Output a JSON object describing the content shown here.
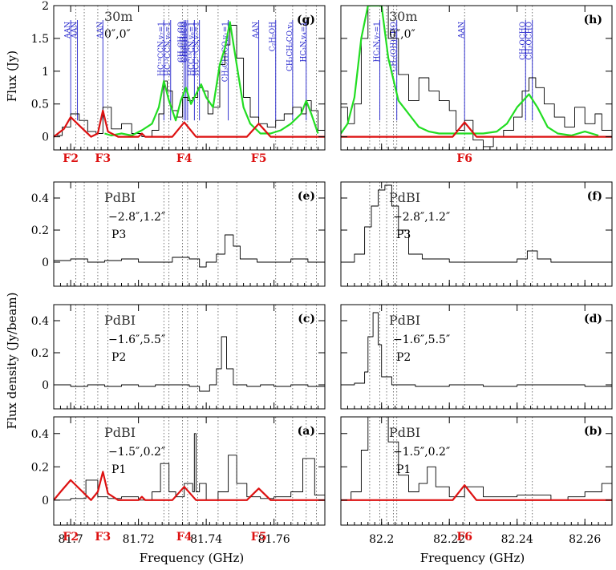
{
  "figure": {
    "x_label": "Frequency (GHz)",
    "y_label_top": "Flux (Jy)",
    "y_label_bottom": "Flux density (Jy/beam)",
    "colors": {
      "observed": "#000000",
      "model_green": "#22dd22",
      "model_red": "#dd1111",
      "line_marker": "#2222cc",
      "guide": "#555555"
    }
  },
  "chart_data": [
    {
      "type": "line",
      "panel": "(g)",
      "instrument": "30m",
      "offset": "0″,0″",
      "xlim": [
        81.695,
        81.775
      ],
      "ylim": [
        -0.2,
        2.0
      ],
      "yticks": [
        0,
        0.5,
        1,
        1.5,
        2
      ],
      "ytick_labels": [
        "0",
        "0.5",
        "1",
        "1.5",
        "2"
      ],
      "xticks": [
        81.7,
        81.72,
        81.74,
        81.76
      ],
      "xtick_labels": [],
      "ylabel": "Flux (Jy)",
      "features": [
        {
          "label": "F2",
          "x": 81.7
        },
        {
          "label": "F3",
          "x": 81.7095
        },
        {
          "label": "F4",
          "x": 81.7335
        },
        {
          "label": "F5",
          "x": 81.7555
        }
      ],
      "species": [
        {
          "name": "AAN",
          "x": 81.7
        },
        {
          "name": "AAN",
          "x": 81.702
        },
        {
          "name": "AAN",
          "x": 81.7095
        },
        {
          "name": "HC¹³CCN,v₇=1",
          "x": 81.7275
        },
        {
          "name": "HC¹³CCN,v₆=1",
          "x": 81.7295
        },
        {
          "name": "CH₃CH₃CO",
          "x": 81.7335
        },
        {
          "name": "CH₃CH₃CO",
          "x": 81.734
        },
        {
          "name": "CH₃CH₃CO",
          "x": 81.7345
        },
        {
          "name": "HCC¹³CN,v₆=1",
          "x": 81.7365
        },
        {
          "name": "HCC¹³CN,v₇=1",
          "x": 81.738
        },
        {
          "name": "CH₃CH₃CO,v₁=1",
          "x": 81.7465
        },
        {
          "name": "AAN",
          "x": 81.7555
        },
        {
          "name": "C₂H₅OH",
          "x": 81.7605
        },
        {
          "name": "CH₃CH₃CO,v₁",
          "x": 81.7655
        },
        {
          "name": "HC₃N,v₄=1",
          "x": 81.7695
        }
      ],
      "series": [
        {
          "role": "observed",
          "x": [
            81.695,
            81.6975,
            81.7,
            81.7025,
            81.705,
            81.7075,
            81.7095,
            81.712,
            81.715,
            81.718,
            81.721,
            81.724,
            81.726,
            81.7275,
            81.7285,
            81.73,
            81.7315,
            81.733,
            81.7345,
            81.736,
            81.7375,
            81.739,
            81.7405,
            81.742,
            81.744,
            81.7455,
            81.747,
            81.749,
            81.751,
            81.753,
            81.7555,
            81.758,
            81.7605,
            81.763,
            81.7655,
            81.768,
            81.7695,
            81.771,
            81.773,
            81.775
          ],
          "y": [
            0.02,
            0.15,
            0.35,
            0.25,
            0.08,
            0.05,
            0.45,
            0.12,
            0.2,
            0.05,
            0.0,
            0.1,
            0.35,
            0.85,
            0.7,
            0.4,
            0.3,
            0.6,
            0.55,
            0.6,
            0.75,
            0.7,
            0.35,
            0.45,
            1.1,
            1.4,
            1.7,
            1.2,
            0.6,
            0.3,
            0.2,
            0.15,
            0.25,
            0.35,
            0.45,
            0.35,
            0.55,
            0.4,
            0.1,
            0.0
          ]
        },
        {
          "role": "model-green",
          "x": [
            81.71,
            81.712,
            81.715,
            81.718,
            81.721,
            81.724,
            81.726,
            81.7275,
            81.729,
            81.731,
            81.7325,
            81.734,
            81.7355,
            81.737,
            81.7385,
            81.74,
            81.742,
            81.744,
            81.7455,
            81.747,
            81.749,
            81.751,
            81.753,
            81.756,
            81.759,
            81.762,
            81.765,
            81.768,
            81.7695,
            81.771,
            81.773
          ],
          "y": [
            0.05,
            0.02,
            0.05,
            0.02,
            0.1,
            0.2,
            0.45,
            0.85,
            0.55,
            0.25,
            0.55,
            0.75,
            0.5,
            0.65,
            0.8,
            0.6,
            0.45,
            1.1,
            1.35,
            1.75,
            1.1,
            0.45,
            0.2,
            0.05,
            0.05,
            0.1,
            0.2,
            0.35,
            0.55,
            0.35,
            0.05
          ]
        },
        {
          "role": "model-red",
          "x": [
            81.695,
            81.698,
            81.7,
            81.703,
            81.706,
            81.708,
            81.7095,
            81.711,
            81.714,
            81.72,
            81.721,
            81.722,
            81.73,
            81.7335,
            81.737,
            81.752,
            81.7555,
            81.759,
            81.775
          ],
          "y": [
            0.0,
            0.12,
            0.3,
            0.15,
            0.0,
            0.05,
            0.4,
            0.08,
            0.0,
            0.0,
            0.05,
            0.0,
            0.0,
            0.22,
            0.0,
            0.0,
            0.2,
            0.0,
            0.0
          ]
        }
      ]
    },
    {
      "type": "line",
      "panel": "(h)",
      "instrument": "30m",
      "offset": "0″,0″",
      "xlim": [
        82.188,
        82.268
      ],
      "ylim": [
        -0.2,
        2.0
      ],
      "xticks": [
        82.2,
        82.22,
        82.24,
        82.26
      ],
      "xtick_labels": [],
      "features": [
        {
          "label": "F6",
          "x": 82.2245
        }
      ],
      "species": [
        {
          "name": "HC₃N,v₇=1",
          "x": 82.1995
        },
        {
          "name": "CH₂(OH)CHO",
          "x": 82.2045
        },
        {
          "name": "AAN",
          "x": 82.2245
        },
        {
          "name": "CH₃OCHO",
          "x": 82.2425
        },
        {
          "name": "CH₃OCHO",
          "x": 82.2445
        }
      ],
      "series": [
        {
          "role": "observed",
          "x": [
            82.188,
            82.19,
            82.192,
            82.194,
            82.196,
            82.198,
            82.2,
            82.202,
            82.205,
            82.208,
            82.211,
            82.214,
            82.217,
            82.22,
            82.222,
            82.2245,
            82.227,
            82.23,
            82.233,
            82.236,
            82.239,
            82.2415,
            82.2435,
            82.2455,
            82.248,
            82.251,
            82.254,
            82.257,
            82.26,
            82.263,
            82.265,
            82.268
          ],
          "y": [
            0.45,
            0.2,
            0.5,
            1.5,
            2.0,
            2.0,
            2.0,
            1.5,
            0.95,
            0.55,
            0.9,
            0.7,
            0.55,
            0.4,
            0.1,
            0.25,
            -0.05,
            -0.15,
            0.0,
            0.1,
            0.3,
            0.7,
            0.9,
            0.75,
            0.5,
            0.3,
            0.15,
            0.45,
            0.2,
            0.35,
            0.1,
            0.05
          ]
        },
        {
          "role": "model-green",
          "x": [
            82.188,
            82.19,
            82.192,
            82.194,
            82.196,
            82.198,
            82.2,
            82.202,
            82.205,
            82.208,
            82.211,
            82.214,
            82.217,
            82.22,
            82.223,
            82.226,
            82.23,
            82.234,
            82.237,
            82.24,
            82.2435,
            82.246,
            82.249,
            82.252,
            82.256,
            82.26,
            82.264
          ],
          "y": [
            0.05,
            0.2,
            0.6,
            1.5,
            2.0,
            2.0,
            2.0,
            1.2,
            0.55,
            0.35,
            0.15,
            0.08,
            0.05,
            0.05,
            0.05,
            0.05,
            0.05,
            0.08,
            0.2,
            0.45,
            0.65,
            0.45,
            0.15,
            0.05,
            0.02,
            0.08,
            0.02
          ]
        },
        {
          "role": "model-red",
          "x": [
            82.188,
            82.221,
            82.2245,
            82.228,
            82.268
          ],
          "y": [
            0.0,
            0.0,
            0.22,
            0.0,
            0.0
          ]
        }
      ]
    },
    {
      "type": "line",
      "panel": "(e)",
      "instrument": "PdBI",
      "offset": "−2.8″,1.2″",
      "position": "P3",
      "xlim": [
        81.695,
        81.775
      ],
      "ylim": [
        -0.15,
        0.5
      ],
      "yticks": [
        0,
        0.2,
        0.4
      ],
      "ytick_labels": [
        "0",
        "0.2",
        "0.4"
      ],
      "xticks": [
        81.7,
        81.72,
        81.74,
        81.76
      ],
      "xtick_labels": [],
      "series": [
        {
          "role": "observed",
          "x": [
            81.695,
            81.7,
            81.705,
            81.71,
            81.715,
            81.72,
            81.725,
            81.73,
            81.735,
            81.738,
            81.74,
            81.743,
            81.7455,
            81.748,
            81.75,
            81.755,
            81.76,
            81.765,
            81.77,
            81.775
          ],
          "y": [
            0.01,
            0.02,
            0.0,
            0.01,
            0.02,
            0.0,
            0.0,
            0.03,
            0.02,
            -0.03,
            0.0,
            0.05,
            0.17,
            0.1,
            0.02,
            0.0,
            0.0,
            0.02,
            0.0,
            0.02
          ]
        }
      ]
    },
    {
      "type": "line",
      "panel": "(f)",
      "instrument": "PdBI",
      "offset": "−2.8″,1.2″",
      "position": "P3",
      "xlim": [
        82.188,
        82.268
      ],
      "ylim": [
        -0.15,
        0.5
      ],
      "xticks": [
        82.2,
        82.22,
        82.24,
        82.26
      ],
      "xtick_labels": [],
      "series": [
        {
          "role": "observed",
          "x": [
            82.188,
            82.192,
            82.195,
            82.197,
            82.199,
            82.201,
            82.203,
            82.205,
            82.208,
            82.212,
            82.22,
            82.23,
            82.24,
            82.243,
            82.246,
            82.25,
            82.26,
            82.268
          ],
          "y": [
            0.0,
            0.05,
            0.22,
            0.35,
            0.45,
            0.48,
            0.35,
            0.2,
            0.05,
            0.02,
            0.0,
            0.0,
            0.02,
            0.07,
            0.02,
            0.0,
            0.0,
            0.0
          ]
        }
      ]
    },
    {
      "type": "line",
      "panel": "(c)",
      "instrument": "PdBI",
      "offset": "−1.6″,5.5″",
      "position": "P2",
      "xlim": [
        81.695,
        81.775
      ],
      "ylim": [
        -0.15,
        0.5
      ],
      "yticks": [
        0,
        0.2,
        0.4
      ],
      "ytick_labels": [
        "0",
        "0.2",
        "0.4"
      ],
      "xticks": [
        81.7,
        81.72,
        81.74,
        81.76
      ],
      "xtick_labels": [],
      "series": [
        {
          "role": "observed",
          "x": [
            81.695,
            81.7,
            81.705,
            81.71,
            81.715,
            81.72,
            81.725,
            81.73,
            81.735,
            81.738,
            81.741,
            81.743,
            81.7445,
            81.746,
            81.748,
            81.752,
            81.756,
            81.76,
            81.765,
            81.77,
            81.775
          ],
          "y": [
            0.0,
            -0.01,
            0.0,
            -0.01,
            0.0,
            -0.01,
            0.0,
            0.0,
            -0.01,
            -0.04,
            0.0,
            0.1,
            0.3,
            0.1,
            0.0,
            -0.01,
            0.0,
            -0.01,
            0.0,
            -0.01,
            0.0
          ]
        }
      ]
    },
    {
      "type": "line",
      "panel": "(d)",
      "instrument": "PdBI",
      "offset": "−1.6″,5.5″",
      "position": "P2",
      "xlim": [
        82.188,
        82.268
      ],
      "ylim": [
        -0.15,
        0.5
      ],
      "xticks": [
        82.2,
        82.22,
        82.24,
        82.26
      ],
      "xtick_labels": [],
      "series": [
        {
          "role": "observed",
          "x": [
            82.188,
            82.192,
            82.195,
            82.196,
            82.1975,
            82.199,
            82.2,
            82.203,
            82.21,
            82.22,
            82.23,
            82.24,
            82.25,
            82.26,
            82.268
          ],
          "y": [
            0.0,
            0.01,
            0.08,
            0.3,
            0.45,
            0.25,
            0.05,
            0.0,
            -0.01,
            0.0,
            -0.01,
            0.0,
            0.0,
            -0.01,
            0.0
          ]
        }
      ]
    },
    {
      "type": "line",
      "panel": "(a)",
      "instrument": "PdBI",
      "offset": "−1.5″,0.2″",
      "position": "P1",
      "xlim": [
        81.695,
        81.775
      ],
      "ylim": [
        -0.15,
        0.5
      ],
      "yticks": [
        0,
        0.2,
        0.4
      ],
      "ytick_labels": [
        "0",
        "0.2",
        "0.4"
      ],
      "xticks": [
        81.7,
        81.72,
        81.74,
        81.76
      ],
      "xtick_labels": [
        "81.7",
        "81.72",
        "81.74",
        "81.76"
      ],
      "features": [
        {
          "label": "F2",
          "x": 81.7
        },
        {
          "label": "F3",
          "x": 81.7095
        },
        {
          "label": "F4",
          "x": 81.7335
        },
        {
          "label": "F5",
          "x": 81.7555
        }
      ],
      "series": [
        {
          "role": "observed",
          "x": [
            81.695,
            81.7,
            81.7045,
            81.708,
            81.711,
            81.715,
            81.72,
            81.724,
            81.7265,
            81.729,
            81.731,
            81.7335,
            81.736,
            81.7365,
            81.737,
            81.738,
            81.74,
            81.7435,
            81.7465,
            81.749,
            81.752,
            81.756,
            81.76,
            81.765,
            81.7685,
            81.772,
            81.775
          ],
          "y": [
            0.0,
            0.01,
            0.12,
            0.02,
            0.01,
            0.02,
            0.0,
            0.05,
            0.22,
            0.05,
            0.02,
            0.1,
            0.05,
            0.4,
            0.05,
            0.1,
            0.0,
            0.05,
            0.27,
            0.1,
            0.02,
            0.01,
            0.02,
            0.05,
            0.25,
            0.03,
            0.0
          ]
        },
        {
          "role": "model-red",
          "x": [
            81.695,
            81.697,
            81.7,
            81.703,
            81.706,
            81.708,
            81.7095,
            81.711,
            81.714,
            81.72,
            81.721,
            81.722,
            81.73,
            81.7335,
            81.737,
            81.752,
            81.7555,
            81.759,
            81.775
          ],
          "y": [
            0.0,
            0.05,
            0.12,
            0.06,
            0.0,
            0.05,
            0.17,
            0.04,
            0.0,
            0.0,
            0.02,
            0.0,
            0.0,
            0.08,
            0.0,
            0.0,
            0.07,
            0.0,
            0.0
          ]
        }
      ]
    },
    {
      "type": "line",
      "panel": "(b)",
      "instrument": "PdBI",
      "offset": "−1.5″,0.2″",
      "position": "P1",
      "xlim": [
        82.188,
        82.268
      ],
      "ylim": [
        -0.15,
        0.5
      ],
      "xticks": [
        82.2,
        82.22,
        82.24,
        82.26
      ],
      "xtick_labels": [
        "82.2",
        "82.22",
        "82.24",
        "82.26"
      ],
      "features": [
        {
          "label": "F6",
          "x": 82.2245
        }
      ],
      "series": [
        {
          "role": "observed",
          "x": [
            82.188,
            82.191,
            82.194,
            82.196,
            82.198,
            82.2,
            82.202,
            82.205,
            82.208,
            82.211,
            82.2135,
            82.216,
            82.22,
            82.2245,
            82.23,
            82.24,
            82.25,
            82.255,
            82.26,
            82.265,
            82.268
          ],
          "y": [
            0.0,
            0.05,
            0.3,
            0.5,
            0.5,
            0.5,
            0.35,
            0.15,
            0.05,
            0.1,
            0.2,
            0.08,
            0.02,
            0.08,
            0.02,
            0.03,
            0.0,
            0.02,
            0.05,
            0.1,
            0.08
          ]
        },
        {
          "role": "model-red",
          "x": [
            82.188,
            82.221,
            82.2245,
            82.228,
            82.268
          ],
          "y": [
            0.0,
            0.0,
            0.09,
            0.0,
            0.0
          ]
        }
      ]
    }
  ]
}
